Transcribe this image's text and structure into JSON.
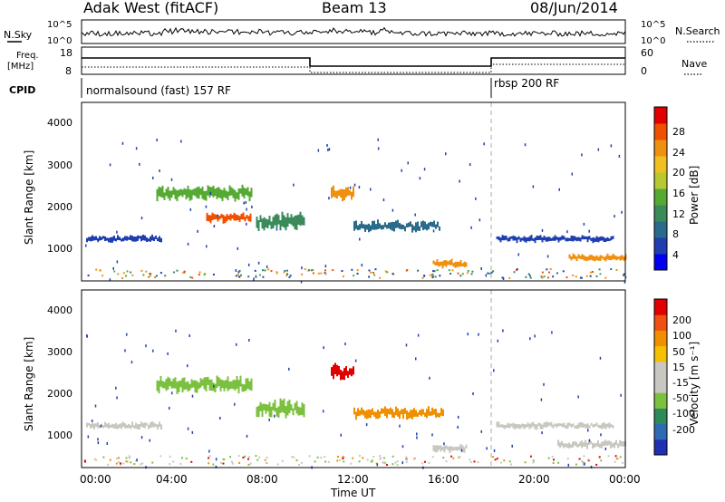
{
  "header": {
    "station": "Adak West (fitACF)",
    "beam": "Beam 13",
    "date": "08/Jun/2014"
  },
  "panels": {
    "nsky_label": "N.Sky",
    "nsky_ticks": [
      "10^5",
      "10^0"
    ],
    "nsearch_label": "N.Search",
    "freq_label_1": "Freq.",
    "freq_label_2": "[MHz]",
    "freq_ticks": [
      "18",
      "8"
    ],
    "nave_ticks": [
      "60",
      "0"
    ],
    "nave_label": "Nave",
    "cpid_label": "CPID",
    "cpid_segments": [
      {
        "text": "normalsound (fast) 157 RF",
        "start_hour": 0
      },
      {
        "text": "rbsp 200 RF",
        "start_hour": 18
      }
    ]
  },
  "colorbars": {
    "power": {
      "label": "Power [dB]",
      "ticks": [
        "28",
        "24",
        "20",
        "16",
        "12",
        "8",
        "4"
      ],
      "colors": [
        "#0000ee",
        "#1f3fb0",
        "#2a6a8a",
        "#3a8a5a",
        "#55aa33",
        "#b8c830",
        "#f0c020",
        "#f09010",
        "#f05000",
        "#e00000"
      ]
    },
    "velocity": {
      "label": "Velocity [m s⁻¹]",
      "ticks": [
        "200",
        "100",
        "50",
        "15",
        "-15",
        "-50",
        "-100",
        "-200"
      ],
      "colors": [
        "#2030b0",
        "#2f6ab5",
        "#2e8a5a",
        "#7cc040",
        "#c8c8c0",
        "#c8c8c0",
        "#f5c000",
        "#f09000",
        "#f05010",
        "#e00000"
      ]
    }
  },
  "chart_data": [
    {
      "type": "heatmap",
      "title": "Power",
      "ylabel": "Slant Range [km]",
      "xlabel": "Time UT",
      "yticks": [
        "4000",
        "3000",
        "2000",
        "1000"
      ],
      "xticks": [
        "00:00",
        "04:00",
        "08:00",
        "12:00",
        "16:00",
        "20:00",
        "00:00"
      ],
      "xlim_hours": [
        0,
        24
      ],
      "ylim_km": [
        180,
        4500
      ],
      "bands": [
        {
          "start": 0.2,
          "end": 3.5,
          "range_km": 1200,
          "width_km": 120,
          "color": "#1f3fb0"
        },
        {
          "start": 3.3,
          "end": 7.5,
          "range_km": 2300,
          "width_km": 250,
          "color": "#55aa33"
        },
        {
          "start": 5.5,
          "end": 7.5,
          "range_km": 1700,
          "width_km": 180,
          "color": "#f05000"
        },
        {
          "start": 7.7,
          "end": 9.8,
          "range_km": 1600,
          "width_km": 300,
          "color": "#3a8a5a"
        },
        {
          "start": 11.0,
          "end": 12.0,
          "range_km": 2300,
          "width_km": 250,
          "color": "#f09010"
        },
        {
          "start": 12.0,
          "end": 15.8,
          "range_km": 1500,
          "width_km": 200,
          "color": "#2a6a8a"
        },
        {
          "start": 15.5,
          "end": 17.0,
          "range_km": 600,
          "width_km": 150,
          "color": "#f09010"
        },
        {
          "start": 18.3,
          "end": 23.5,
          "range_km": 1200,
          "width_km": 120,
          "color": "#1f3fb0"
        },
        {
          "start": 21.5,
          "end": 24.0,
          "range_km": 750,
          "width_km": 120,
          "color": "#f09010"
        }
      ]
    },
    {
      "type": "heatmap",
      "title": "Velocity",
      "ylabel": "Slant Range [km]",
      "xlabel": "Time UT",
      "yticks": [
        "4000",
        "3000",
        "2000",
        "1000"
      ],
      "xticks": [
        "00:00",
        "04:00",
        "08:00",
        "12:00",
        "16:00",
        "20:00",
        "00:00"
      ],
      "xlim_hours": [
        0,
        24
      ],
      "ylim_km": [
        180,
        4500
      ],
      "bands": [
        {
          "start": 0.2,
          "end": 3.5,
          "range_km": 1200,
          "width_km": 120,
          "color": "#c8c8c0"
        },
        {
          "start": 3.3,
          "end": 7.5,
          "range_km": 2200,
          "width_km": 300,
          "color": "#7cc040"
        },
        {
          "start": 7.7,
          "end": 9.8,
          "range_km": 1600,
          "width_km": 300,
          "color": "#7cc040"
        },
        {
          "start": 11.0,
          "end": 12.0,
          "range_km": 2500,
          "width_km": 300,
          "color": "#e00000"
        },
        {
          "start": 12.0,
          "end": 16.0,
          "range_km": 1500,
          "width_km": 200,
          "color": "#f09000"
        },
        {
          "start": 15.5,
          "end": 17.0,
          "range_km": 650,
          "width_km": 150,
          "color": "#c8c8c0"
        },
        {
          "start": 18.3,
          "end": 23.5,
          "range_km": 1200,
          "width_km": 120,
          "color": "#c8c8c0"
        },
        {
          "start": 21.0,
          "end": 24.0,
          "range_km": 750,
          "width_km": 150,
          "color": "#c8c8c0"
        }
      ]
    }
  ]
}
